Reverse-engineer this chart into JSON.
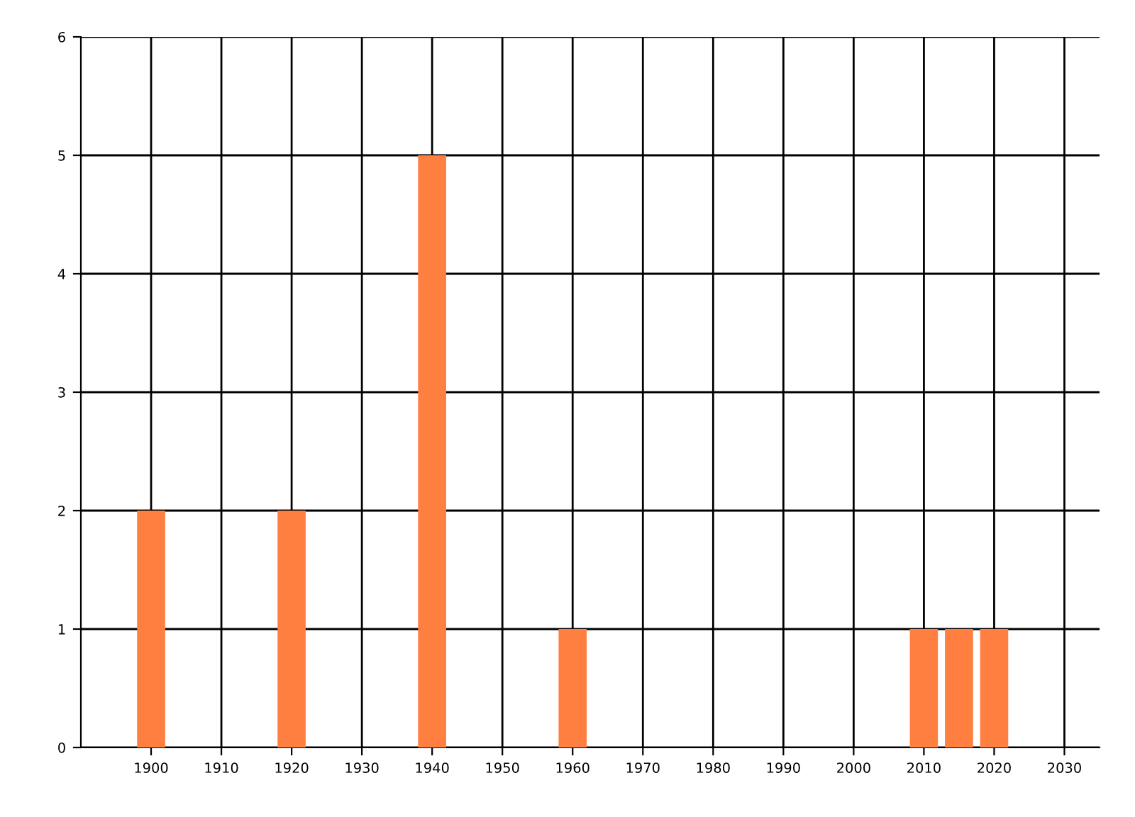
{
  "chart_data": {
    "type": "bar",
    "x": [
      1900,
      1920,
      1940,
      1960,
      2010,
      2015,
      2020
    ],
    "values": [
      2,
      2,
      5,
      1,
      1,
      1,
      1
    ],
    "color": "#ff7f40",
    "xlim": [
      1890,
      2035
    ],
    "xticks": [
      1900,
      1910,
      1920,
      1930,
      1940,
      1950,
      1960,
      1970,
      1980,
      1990,
      2000,
      2010,
      2020,
      2030
    ],
    "ylim": [
      0,
      6
    ],
    "yticks": [
      0,
      1,
      2,
      3,
      4,
      5,
      6
    ],
    "grid": true
  }
}
